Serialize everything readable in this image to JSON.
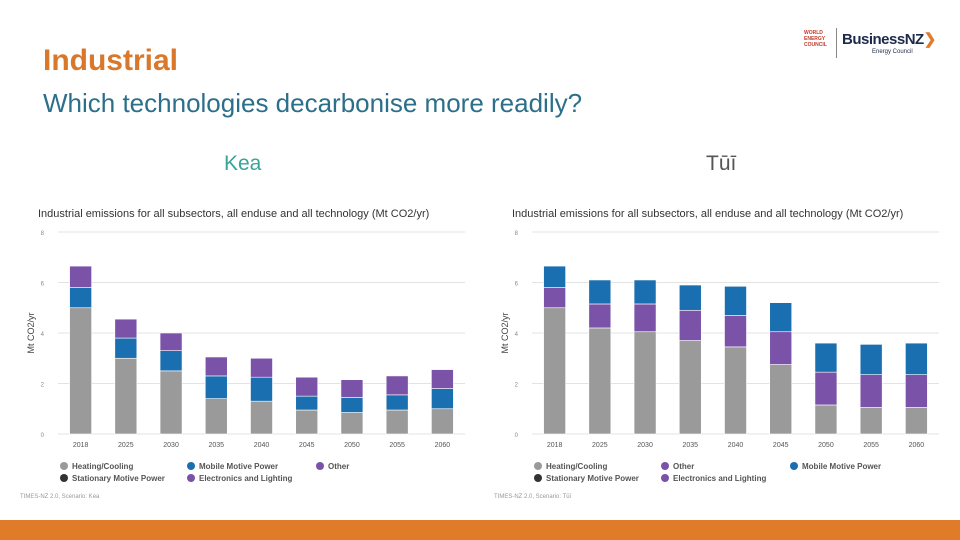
{
  "slide": {
    "title": "Industrial",
    "subtitle": "Which technologies decarbonise more readily?"
  },
  "logo": {
    "org_lines": [
      "WORLD",
      "ENERGY",
      "COUNCIL"
    ],
    "brand": "BusinessNZ",
    "brand_sub": "Energy Council"
  },
  "colors": {
    "heating_cooling": "#9a9a9a",
    "stationary_motive_power": "#333333",
    "mobile_motive_power": "#1a6fb0",
    "electronics_lighting": "#7a52a8",
    "other": "#7a52a8",
    "footer": "#e07b2a"
  },
  "chart_data": [
    {
      "scenario": "Kea",
      "type": "bar",
      "stacked": true,
      "title": "Industrial emissions for all subsectors, all enduse and all technology (Mt CO2/yr)",
      "xlabel": "",
      "ylabel": "Mt CO2/yr",
      "ylim": [
        0,
        8
      ],
      "yticks": [
        "0",
        "2",
        "4",
        "6",
        "8"
      ],
      "grid": true,
      "categories": [
        "2018",
        "2025",
        "2030",
        "2035",
        "2040",
        "2045",
        "2050",
        "2055",
        "2060"
      ],
      "series": [
        {
          "name": "Heating/Cooling",
          "color": "#9a9a9a",
          "values": [
            5.0,
            3.0,
            2.5,
            1.4,
            1.3,
            0.95,
            0.85,
            0.95,
            1.0
          ]
        },
        {
          "name": "Mobile Motive Power",
          "color": "#1a6fb0",
          "values": [
            0.8,
            0.8,
            0.8,
            0.9,
            0.95,
            0.55,
            0.6,
            0.6,
            0.8
          ]
        },
        {
          "name": "Other",
          "color": "#7a52a8",
          "values": [
            0.85,
            0.75,
            0.7,
            0.75,
            0.75,
            0.75,
            0.7,
            0.75,
            0.75
          ]
        }
      ],
      "legend": [
        {
          "name": "Heating/Cooling",
          "color": "#9a9a9a"
        },
        {
          "name": "Mobile Motive Power",
          "color": "#1a6fb0"
        },
        {
          "name": "Other",
          "color": "#7a52a8"
        },
        {
          "name": "Stationary Motive Power",
          "color": "#333333"
        },
        {
          "name": "Electronics and Lighting",
          "color": "#7a52a8"
        }
      ],
      "legend_cols": 3,
      "legend_position": "bottom",
      "source": "TIMES-NZ 2.0, Scenario: Kea"
    },
    {
      "scenario": "Tūī",
      "type": "bar",
      "stacked": true,
      "title": "Industrial emissions for all subsectors, all enduse and all technology (Mt CO2/yr)",
      "xlabel": "",
      "ylabel": "Mt CO2/yr",
      "ylim": [
        0,
        8
      ],
      "yticks": [
        "0",
        "2",
        "4",
        "6",
        "8"
      ],
      "grid": true,
      "categories": [
        "2018",
        "2025",
        "2030",
        "2035",
        "2040",
        "2045",
        "2050",
        "2055",
        "2060"
      ],
      "series": [
        {
          "name": "Heating/Cooling",
          "color": "#9a9a9a",
          "values": [
            5.0,
            4.2,
            4.05,
            3.7,
            3.45,
            2.75,
            1.15,
            1.05,
            1.05
          ]
        },
        {
          "name": "Other",
          "color": "#7a52a8",
          "values": [
            0.8,
            0.95,
            1.1,
            1.2,
            1.25,
            1.3,
            1.3,
            1.3,
            1.3
          ]
        },
        {
          "name": "Mobile Motive Power",
          "color": "#1a6fb0",
          "values": [
            0.85,
            0.95,
            0.95,
            1.0,
            1.15,
            1.15,
            1.15,
            1.2,
            1.25
          ]
        }
      ],
      "legend": [
        {
          "name": "Heating/Cooling",
          "color": "#9a9a9a"
        },
        {
          "name": "Other",
          "color": "#7a52a8"
        },
        {
          "name": "Mobile Motive Power",
          "color": "#1a6fb0"
        },
        {
          "name": "Stationary Motive Power",
          "color": "#333333"
        },
        {
          "name": "Electronics and Lighting",
          "color": "#7a52a8"
        }
      ],
      "legend_cols": 3,
      "legend_position": "bottom",
      "source": "TIMES-NZ 2.0, Scenario: Tūī"
    }
  ]
}
